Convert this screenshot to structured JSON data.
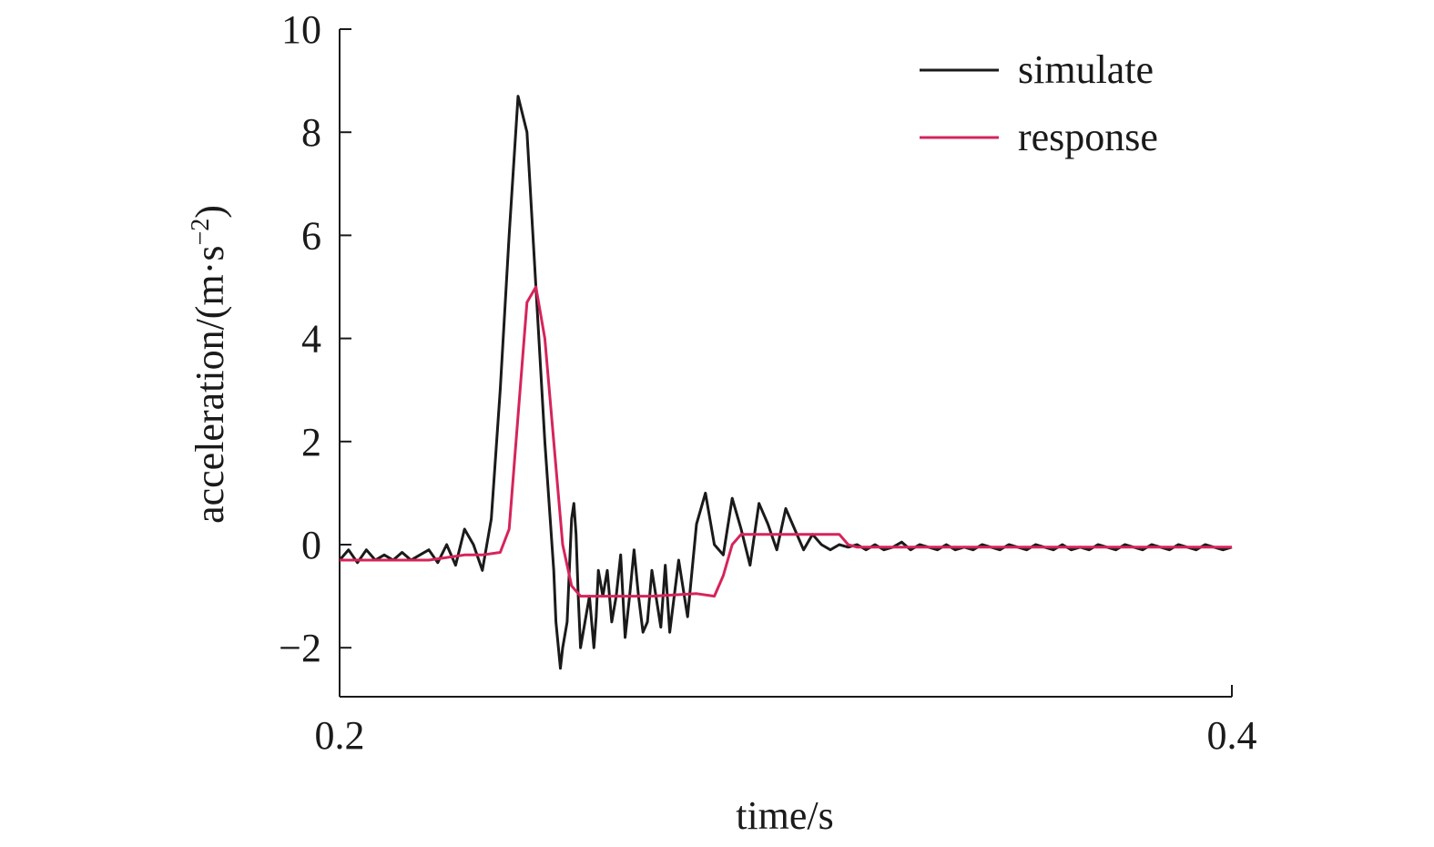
{
  "chart_data": {
    "type": "line",
    "xlabel": "time/s",
    "ylabel": {
      "prefix": "acceleration/(m·s",
      "exponent": "−2",
      "suffix": ")"
    },
    "xlim": [
      0.2,
      0.4
    ],
    "ylim": [
      -3,
      10
    ],
    "xticks": [
      {
        "value": 0.2,
        "label": "0.2"
      },
      {
        "value": 0.4,
        "label": "0.4"
      }
    ],
    "yticks": [
      {
        "value": -2,
        "label": "−2"
      },
      {
        "value": 0,
        "label": "0"
      },
      {
        "value": 2,
        "label": "2"
      },
      {
        "value": 4,
        "label": "4"
      },
      {
        "value": 6,
        "label": "6"
      },
      {
        "value": 8,
        "label": "8"
      },
      {
        "value": 10,
        "label": "10"
      }
    ],
    "legend_position": "top-right",
    "series": [
      {
        "name": "simulate",
        "color": "#1a1a1a",
        "x": [
          0.2,
          0.202,
          0.204,
          0.206,
          0.208,
          0.21,
          0.212,
          0.214,
          0.216,
          0.218,
          0.22,
          0.222,
          0.224,
          0.226,
          0.228,
          0.23,
          0.232,
          0.234,
          0.236,
          0.238,
          0.24,
          0.242,
          0.244,
          0.246,
          0.248,
          0.2485,
          0.2495,
          0.25,
          0.251,
          0.2515,
          0.252,
          0.2525,
          0.253,
          0.2535,
          0.254,
          0.255,
          0.256,
          0.257,
          0.2575,
          0.258,
          0.259,
          0.26,
          0.261,
          0.262,
          0.263,
          0.264,
          0.265,
          0.266,
          0.267,
          0.268,
          0.269,
          0.27,
          0.272,
          0.273,
          0.274,
          0.276,
          0.278,
          0.28,
          0.282,
          0.284,
          0.286,
          0.288,
          0.29,
          0.292,
          0.294,
          0.296,
          0.298,
          0.3,
          0.302,
          0.304,
          0.306,
          0.308,
          0.31,
          0.312,
          0.314,
          0.316,
          0.318,
          0.32,
          0.322,
          0.324,
          0.326,
          0.328,
          0.33,
          0.332,
          0.334,
          0.336,
          0.338,
          0.34,
          0.342,
          0.344,
          0.346,
          0.348,
          0.35,
          0.352,
          0.354,
          0.356,
          0.358,
          0.36,
          0.362,
          0.364,
          0.366,
          0.368,
          0.37,
          0.372,
          0.374,
          0.376,
          0.378,
          0.38,
          0.382,
          0.384,
          0.386,
          0.388,
          0.39,
          0.392,
          0.394,
          0.396,
          0.398,
          0.4
        ],
        "y": [
          -0.3,
          -0.1,
          -0.35,
          -0.1,
          -0.3,
          -0.2,
          -0.3,
          -0.15,
          -0.3,
          -0.2,
          -0.1,
          -0.35,
          0.0,
          -0.4,
          0.3,
          0.0,
          -0.5,
          0.5,
          3.0,
          6.0,
          8.7,
          8.0,
          5.0,
          2.0,
          -0.5,
          -1.5,
          -2.4,
          -2.0,
          -1.5,
          -0.5,
          0.5,
          0.8,
          0.2,
          -1.0,
          -2.0,
          -1.5,
          -1.0,
          -2.0,
          -1.4,
          -0.5,
          -1.0,
          -0.5,
          -1.5,
          -1.0,
          -0.2,
          -1.8,
          -1.0,
          -0.1,
          -1.0,
          -1.7,
          -1.5,
          -0.5,
          -1.6,
          -0.4,
          -1.7,
          -0.3,
          -1.4,
          0.4,
          1.0,
          0.0,
          -0.2,
          0.9,
          0.3,
          -0.4,
          0.8,
          0.4,
          -0.1,
          0.7,
          0.3,
          -0.1,
          0.2,
          0.0,
          -0.1,
          0.0,
          -0.05,
          0.0,
          -0.1,
          0.0,
          -0.1,
          -0.05,
          0.05,
          -0.1,
          0.0,
          -0.05,
          -0.1,
          0.0,
          -0.1,
          -0.05,
          -0.1,
          0.0,
          -0.05,
          -0.1,
          0.0,
          -0.05,
          -0.1,
          0.0,
          -0.05,
          -0.1,
          0.0,
          -0.1,
          -0.05,
          -0.1,
          0.0,
          -0.05,
          -0.1,
          0.0,
          -0.05,
          -0.1,
          0.0,
          -0.05,
          -0.1,
          0.0,
          -0.05,
          -0.1,
          0.0,
          -0.05,
          -0.1,
          -0.05
        ]
      },
      {
        "name": "response",
        "color": "#d6245a",
        "x": [
          0.2,
          0.21,
          0.22,
          0.228,
          0.232,
          0.236,
          0.238,
          0.24,
          0.242,
          0.244,
          0.246,
          0.248,
          0.25,
          0.252,
          0.254,
          0.256,
          0.26,
          0.27,
          0.28,
          0.284,
          0.286,
          0.288,
          0.29,
          0.3,
          0.31,
          0.312,
          0.314,
          0.316,
          0.32,
          0.33,
          0.34,
          0.35,
          0.36,
          0.37,
          0.38,
          0.39,
          0.4
        ],
        "y": [
          -0.3,
          -0.3,
          -0.3,
          -0.2,
          -0.2,
          -0.15,
          0.3,
          2.5,
          4.7,
          5.0,
          4.0,
          2.0,
          0.0,
          -0.8,
          -1.0,
          -1.0,
          -1.0,
          -1.0,
          -0.95,
          -1.0,
          -0.6,
          0.0,
          0.2,
          0.2,
          0.2,
          0.2,
          0.0,
          -0.05,
          -0.05,
          -0.05,
          -0.05,
          -0.05,
          -0.05,
          -0.05,
          -0.05,
          -0.05,
          -0.05
        ]
      }
    ]
  }
}
